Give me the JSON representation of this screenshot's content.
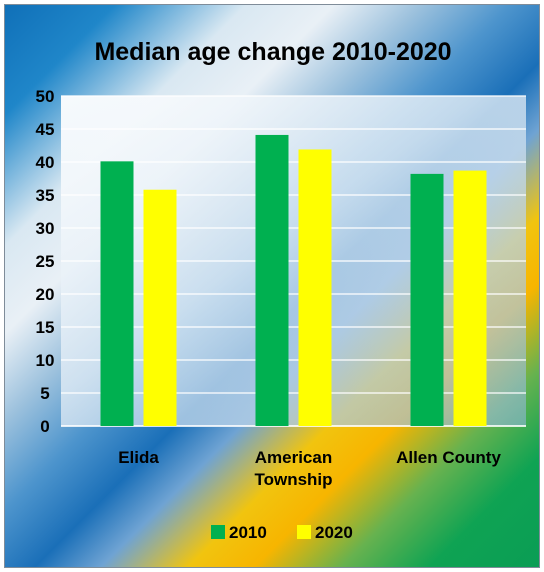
{
  "chart_data": {
    "type": "bar",
    "title": "Median age change 2010-2020",
    "categories": [
      [
        "Elida"
      ],
      [
        "American",
        "Township"
      ],
      [
        "Allen County"
      ]
    ],
    "series": [
      {
        "name": "2010",
        "values": [
          40.1,
          44.1,
          38.2
        ],
        "color": "#00b050"
      },
      {
        "name": "2020",
        "values": [
          35.8,
          41.9,
          38.7
        ],
        "color": "#ffff00"
      }
    ],
    "ylim": [
      0,
      50
    ],
    "yticks": [
      0,
      5,
      10,
      15,
      20,
      25,
      30,
      35,
      40,
      45,
      50
    ],
    "grid": true,
    "legend": "bottom"
  }
}
